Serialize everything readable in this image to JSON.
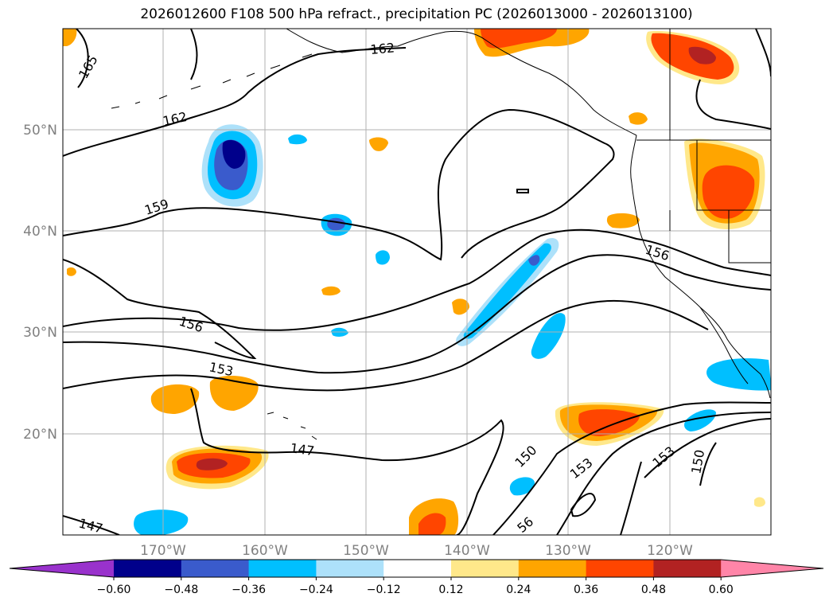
{
  "title": "2026012600 F108 500 hPa refract., precipitation PC (2026013000 - 2026013100)",
  "lat_labels": [
    "50°N",
    "40°N",
    "30°N",
    "20°N"
  ],
  "lon_labels": [
    "170°W",
    "160°W",
    "150°W",
    "140°W",
    "130°W",
    "120°W"
  ],
  "contour_labels": [
    "165",
    "162",
    "162",
    "159",
    "156",
    "156",
    "153",
    "147",
    "147",
    "150",
    "153",
    "153",
    "150",
    "56"
  ],
  "colorbar": {
    "ticks": [
      "−0.60",
      "−0.48",
      "−0.36",
      "−0.24",
      "−0.12",
      "0.12",
      "0.24",
      "0.36",
      "0.48",
      "0.60"
    ],
    "colors": [
      "#9932CC",
      "#00008B",
      "#3A5BCC",
      "#00BFFF",
      "#ADE1FA",
      "#FFFFFF",
      "#FFE88A",
      "#FFA500",
      "#FF4500",
      "#B22222",
      "#FF85A8"
    ]
  }
}
